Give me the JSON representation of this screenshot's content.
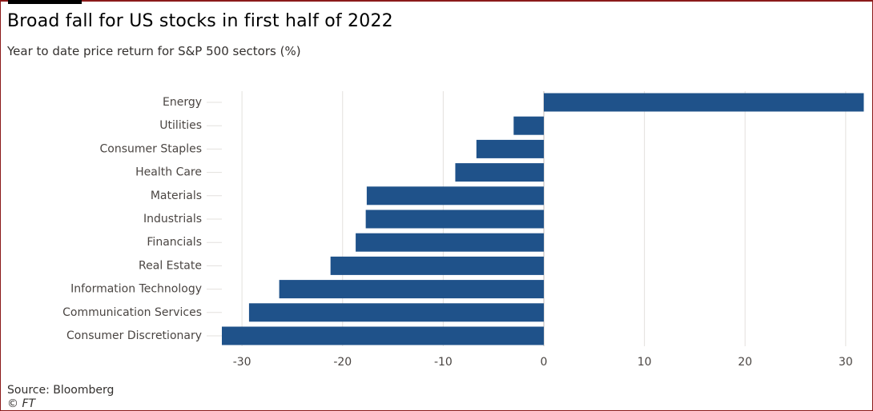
{
  "header": {
    "title": "Broad fall for US stocks in first half of 2022",
    "subtitle": "Year to date price return for S&P 500 sectors (%)"
  },
  "footer": {
    "source": "Source: Bloomberg",
    "credit": "© FT"
  },
  "colors": {
    "bar": "#1f528a",
    "grid": "#e3e0dd",
    "zero_line": "#bfbab6",
    "frame": "#8b1a1a"
  },
  "chart_data": {
    "type": "bar",
    "orientation": "horizontal",
    "title": "Broad fall for US stocks in first half of 2022",
    "subtitle": "Year to date price return for S&P 500 sectors (%)",
    "categories": [
      "Energy",
      "Utilities",
      "Consumer Staples",
      "Health Care",
      "Materials",
      "Industrials",
      "Financials",
      "Real Estate",
      "Information Technology",
      "Communication Services",
      "Consumer Discretionary"
    ],
    "values": [
      31.8,
      -3.0,
      -6.7,
      -8.8,
      -17.6,
      -17.7,
      -18.7,
      -21.2,
      -26.3,
      -29.3,
      -32.0
    ],
    "xlim": [
      -32,
      32
    ],
    "xticks": [
      -30,
      -20,
      -10,
      0,
      10,
      20,
      30
    ],
    "xtick_labels": [
      "-30",
      "-20",
      "-10",
      "0",
      "10",
      "20",
      "30"
    ],
    "grid": true,
    "legend": "none",
    "source": "Source: Bloomberg"
  }
}
